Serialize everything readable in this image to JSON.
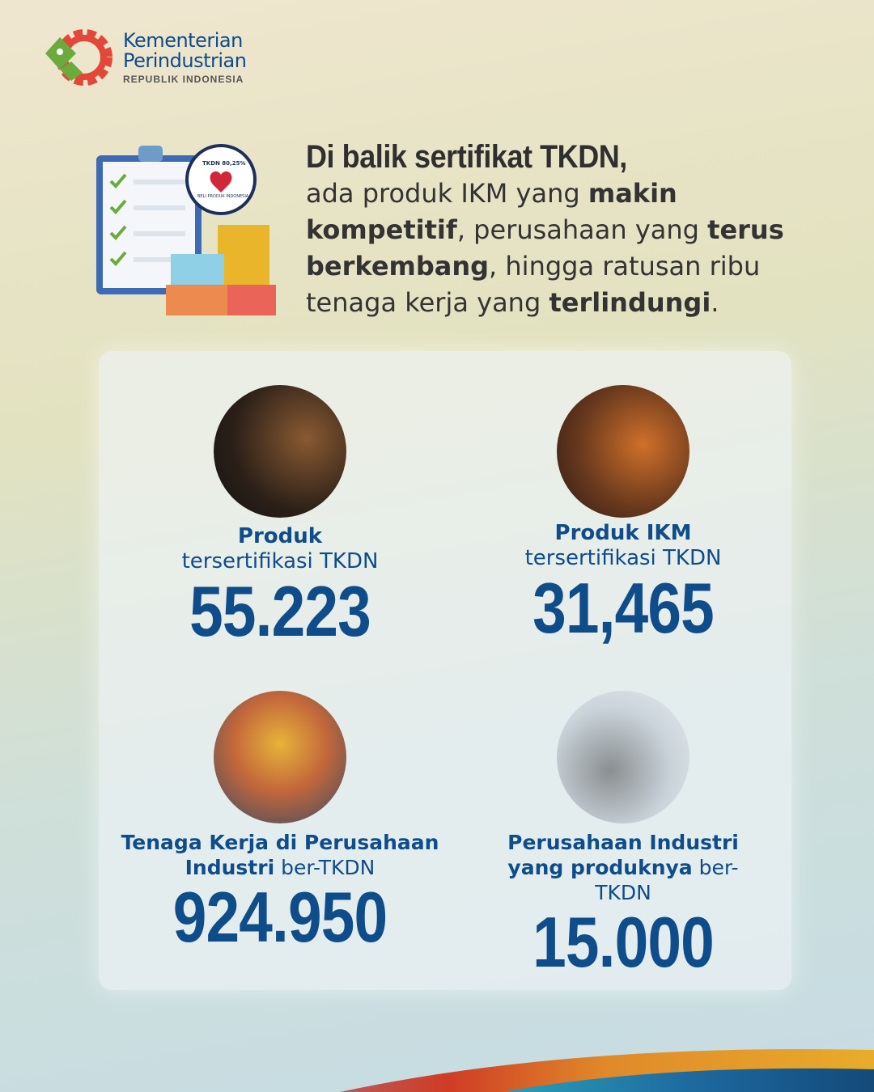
{
  "logo": {
    "line1": "Kementerian",
    "line2": "Perindustrian",
    "line3": "REPUBLIK INDONESIA"
  },
  "badge": {
    "top": "TKDN 80,25%",
    "bottom": "BELI PRODUK INDONESIA"
  },
  "headline": {
    "title": "Di balik sertifikat TKDN,",
    "p1": "ada produk IKM yang ",
    "b1": "makin kompetitif",
    "p2": ", perusahaan yang ",
    "b2": "terus berkembang",
    "p3": ", hingga ratusan ribu tenaga kerja yang ",
    "b3": "terlindungi",
    "p4": "."
  },
  "stats": [
    {
      "bold": "Produk",
      "rest": "tersertifikasi TKDN",
      "value": "55.223",
      "image": "speaker-photo"
    },
    {
      "bold": "Produk IKM",
      "rest": "tersertifikasi TKDN",
      "value": "31,465",
      "image": "shoe-photo"
    },
    {
      "bold": "Tenaga Kerja di Perusahaan Industri",
      "rest": " ber-TKDN",
      "value": "924.950",
      "image": "workers-photo"
    },
    {
      "bold": "Perusahaan Industri yang produknya",
      "rest": " ber-TKDN",
      "value": "15.000",
      "image": "circuit-board-photo"
    }
  ],
  "colors": {
    "brand": "#0f4c8a",
    "orange": "#e8a82a",
    "red": "#cf3c25"
  }
}
